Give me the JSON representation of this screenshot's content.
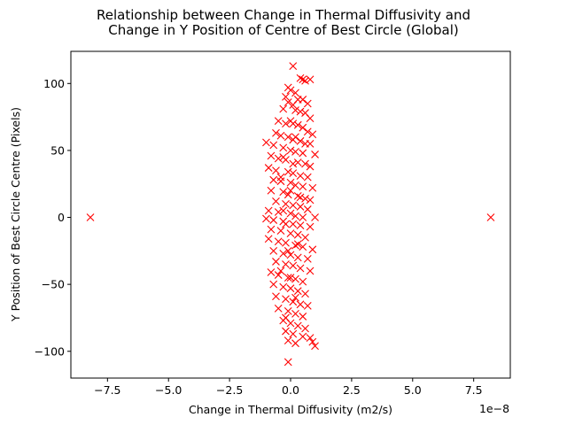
{
  "chart_data": {
    "type": "scatter",
    "title_lines": [
      "Relationship between Change in Thermal Diffusivity and",
      "Change in Y Position of Centre of Best Circle (Global)"
    ],
    "xlabel": "Change in Thermal Diffusivity (m2/s)",
    "ylabel": "Y Position of Best Circle Centre (Pixels)",
    "x_offset_label": "1e−8",
    "xlim": [
      -9.0,
      9.0
    ],
    "ylim": [
      -120,
      124
    ],
    "x_scale_note": "x values in units of 1e-8 m2/s",
    "x_ticks": [
      {
        "value": -7.5,
        "label": "−7.5"
      },
      {
        "value": -5.0,
        "label": "−5.0"
      },
      {
        "value": -2.5,
        "label": "−2.5"
      },
      {
        "value": 0.0,
        "label": "0.0"
      },
      {
        "value": 2.5,
        "label": "2.5"
      },
      {
        "value": 5.0,
        "label": "5.0"
      },
      {
        "value": 7.5,
        "label": "7.5"
      }
    ],
    "y_ticks": [
      {
        "value": -100,
        "label": "−100"
      },
      {
        "value": -50,
        "label": "−50"
      },
      {
        "value": 0,
        "label": "0"
      },
      {
        "value": 50,
        "label": "50"
      },
      {
        "value": 100,
        "label": "100"
      }
    ],
    "grid": false,
    "marker": "x",
    "color": "#ff0000",
    "points": [
      [
        -8.2,
        0
      ],
      [
        8.2,
        0
      ],
      [
        0.1,
        113
      ],
      [
        0.4,
        104
      ],
      [
        0.5,
        103
      ],
      [
        0.6,
        102
      ],
      [
        0.8,
        103
      ],
      [
        -0.1,
        97
      ],
      [
        0.0,
        95
      ],
      [
        0.2,
        93
      ],
      [
        -0.2,
        90
      ],
      [
        0.3,
        88
      ],
      [
        0.5,
        88
      ],
      [
        0.7,
        85
      ],
      [
        -0.1,
        86
      ],
      [
        0.1,
        84
      ],
      [
        -0.3,
        81
      ],
      [
        0.2,
        80
      ],
      [
        0.4,
        79
      ],
      [
        0.6,
        78
      ],
      [
        0.8,
        74
      ],
      [
        -0.5,
        72
      ],
      [
        -0.2,
        70
      ],
      [
        0.0,
        72
      ],
      [
        0.3,
        69
      ],
      [
        0.5,
        67
      ],
      [
        0.7,
        64
      ],
      [
        0.9,
        62
      ],
      [
        -0.6,
        63
      ],
      [
        -0.4,
        61
      ],
      [
        -0.1,
        60
      ],
      [
        0.1,
        58
      ],
      [
        0.4,
        57
      ],
      [
        0.6,
        55
      ],
      [
        0.8,
        55
      ],
      [
        -1.0,
        56
      ],
      [
        -0.7,
        54
      ],
      [
        -0.3,
        52
      ],
      [
        0.0,
        50
      ],
      [
        0.2,
        49
      ],
      [
        0.5,
        48
      ],
      [
        1.0,
        47
      ],
      [
        -0.8,
        46
      ],
      [
        -0.5,
        44
      ],
      [
        -0.2,
        43
      ],
      [
        0.3,
        41
      ],
      [
        0.6,
        40
      ],
      [
        0.8,
        38
      ],
      [
        -0.9,
        37
      ],
      [
        -0.6,
        35
      ],
      [
        -0.1,
        34
      ],
      [
        0.1,
        33
      ],
      [
        0.4,
        31
      ],
      [
        0.7,
        30
      ],
      [
        -0.7,
        28
      ],
      [
        -0.4,
        27
      ],
      [
        0.0,
        26
      ],
      [
        0.2,
        24
      ],
      [
        0.5,
        23
      ],
      [
        0.9,
        22
      ],
      [
        -0.8,
        20
      ],
      [
        -0.3,
        19
      ],
      [
        -0.1,
        17
      ],
      [
        0.3,
        16
      ],
      [
        0.6,
        14
      ],
      [
        0.8,
        13
      ],
      [
        -0.6,
        12
      ],
      [
        -0.2,
        10
      ],
      [
        0.1,
        9
      ],
      [
        0.4,
        8
      ],
      [
        0.7,
        6
      ],
      [
        -0.9,
        5
      ],
      [
        -0.5,
        4
      ],
      [
        0.0,
        3
      ],
      [
        0.2,
        1
      ],
      [
        0.5,
        0
      ],
      [
        1.0,
        0
      ],
      [
        -1.0,
        -1
      ],
      [
        -0.7,
        -2
      ],
      [
        -0.3,
        -3
      ],
      [
        0.1,
        -5
      ],
      [
        0.4,
        -6
      ],
      [
        0.8,
        -7
      ],
      [
        -0.8,
        -9
      ],
      [
        -0.4,
        -10
      ],
      [
        0.0,
        -12
      ],
      [
        0.3,
        -13
      ],
      [
        0.6,
        -15
      ],
      [
        -0.9,
        -16
      ],
      [
        -0.5,
        -18
      ],
      [
        -0.2,
        -19
      ],
      [
        0.2,
        -21
      ],
      [
        0.5,
        -22
      ],
      [
        0.9,
        -24
      ],
      [
        -0.7,
        -25
      ],
      [
        -0.3,
        -27
      ],
      [
        0.0,
        -28
      ],
      [
        0.3,
        -30
      ],
      [
        0.7,
        -31
      ],
      [
        -0.6,
        -33
      ],
      [
        -0.2,
        -35
      ],
      [
        0.1,
        -36
      ],
      [
        0.4,
        -38
      ],
      [
        0.8,
        -40
      ],
      [
        -0.8,
        -41
      ],
      [
        -0.5,
        -43
      ],
      [
        -0.1,
        -45
      ],
      [
        0.2,
        -46
      ],
      [
        0.5,
        -48
      ],
      [
        -0.7,
        -50
      ],
      [
        -0.3,
        -52
      ],
      [
        0.0,
        -53
      ],
      [
        0.3,
        -55
      ],
      [
        0.6,
        -57
      ],
      [
        -0.6,
        -59
      ],
      [
        -0.2,
        -61
      ],
      [
        0.1,
        -63
      ],
      [
        0.4,
        -65
      ],
      [
        0.7,
        -66
      ],
      [
        -0.5,
        -68
      ],
      [
        -0.1,
        -70
      ],
      [
        0.2,
        -72
      ],
      [
        0.5,
        -74
      ],
      [
        -0.3,
        -77
      ],
      [
        0.0,
        -79
      ],
      [
        0.3,
        -81
      ],
      [
        0.6,
        -83
      ],
      [
        -0.2,
        -85
      ],
      [
        0.1,
        -87
      ],
      [
        0.5,
        -89
      ],
      [
        0.8,
        -90
      ],
      [
        -0.1,
        -92
      ],
      [
        0.2,
        -94
      ],
      [
        0.9,
        -93
      ],
      [
        1.0,
        -96
      ],
      [
        -0.1,
        -108
      ],
      [
        -0.3,
        45
      ],
      [
        0.2,
        60
      ],
      [
        -0.4,
        30
      ],
      [
        0.4,
        15
      ],
      [
        -0.2,
        -5
      ],
      [
        0.3,
        -20
      ],
      [
        -0.4,
        -40
      ],
      [
        0.2,
        -60
      ],
      [
        -0.3,
        5
      ],
      [
        0.1,
        40
      ],
      [
        -0.1,
        -25
      ],
      [
        0.0,
        20
      ],
      [
        0.0,
        -45
      ],
      [
        0.1,
        70
      ],
      [
        -0.2,
        -75
      ]
    ]
  }
}
